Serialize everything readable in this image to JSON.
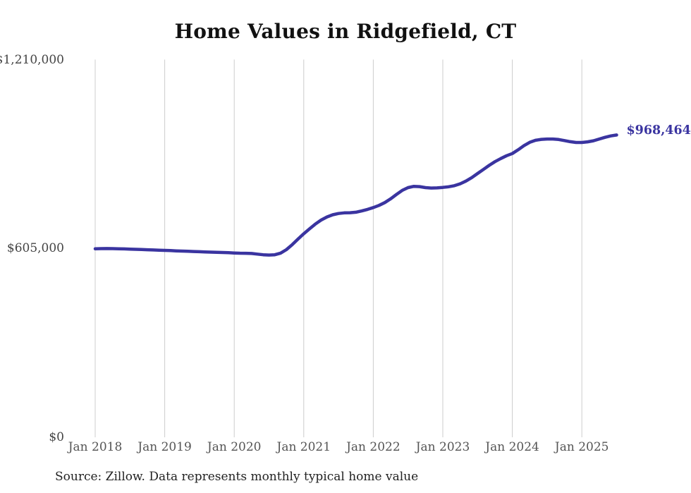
{
  "header": {
    "title": "Home Values in Ridgefield, CT"
  },
  "footer": {
    "source_note": "Source: Zillow. Data represents monthly typical home value"
  },
  "colors": {
    "line": "#3a34a0",
    "end_label": "#3a34a0",
    "gridline": "#cccccc",
    "title_text": "#111111",
    "y_tick_text": "#444444",
    "x_tick_text": "#555555",
    "source_text": "#222222",
    "background": "#ffffff"
  },
  "chart_data": {
    "type": "line",
    "title": "Home Values in Ridgefield, CT",
    "xlabel": "",
    "ylabel": "",
    "x_unit": "month",
    "x_start": "2018-01",
    "x_end": "2025-07",
    "ylim": [
      0,
      1210000
    ],
    "grid": "vertical-only",
    "legend": "none",
    "x_tick_labels": [
      "Jan 2018",
      "Jan 2019",
      "Jan 2020",
      "Jan 2021",
      "Jan 2022",
      "Jan 2023",
      "Jan 2024",
      "Jan 2025"
    ],
    "y_ticks": [
      {
        "label": "$0",
        "value": 0
      },
      {
        "label": "$605,000",
        "value": 605000
      },
      {
        "label": "$1,210,000",
        "value": 1210000
      }
    ],
    "series": [
      {
        "name": "Monthly typical home value",
        "latest_label": "$968,464",
        "latest_value": 968464,
        "values": [
          604000,
          604400,
          604600,
          604400,
          604000,
          603500,
          602900,
          602200,
          601500,
          600800,
          600100,
          599400,
          598700,
          598000,
          597300,
          596600,
          595900,
          595200,
          594500,
          593800,
          593200,
          592600,
          592000,
          591300,
          590500,
          589800,
          589600,
          588800,
          586800,
          584800,
          583800,
          584800,
          590000,
          601000,
          617000,
          635000,
          652000,
          668000,
          683000,
          696000,
          706000,
          713000,
          717000,
          719000,
          719500,
          721000,
          725000,
          730000,
          736000,
          743000,
          752000,
          764000,
          778000,
          791000,
          800000,
          804000,
          803000,
          800000,
          798500,
          799000,
          800500,
          802500,
          806000,
          812000,
          821000,
          832000,
          845000,
          858000,
          871000,
          883000,
          893000,
          902000,
          909000,
          921000,
          934000,
          945000,
          951500,
          954500,
          955500,
          955500,
          954000,
          950500,
          947000,
          944500,
          944500,
          946500,
          950000,
          955500,
          961000,
          965500,
          968464
        ]
      }
    ]
  }
}
